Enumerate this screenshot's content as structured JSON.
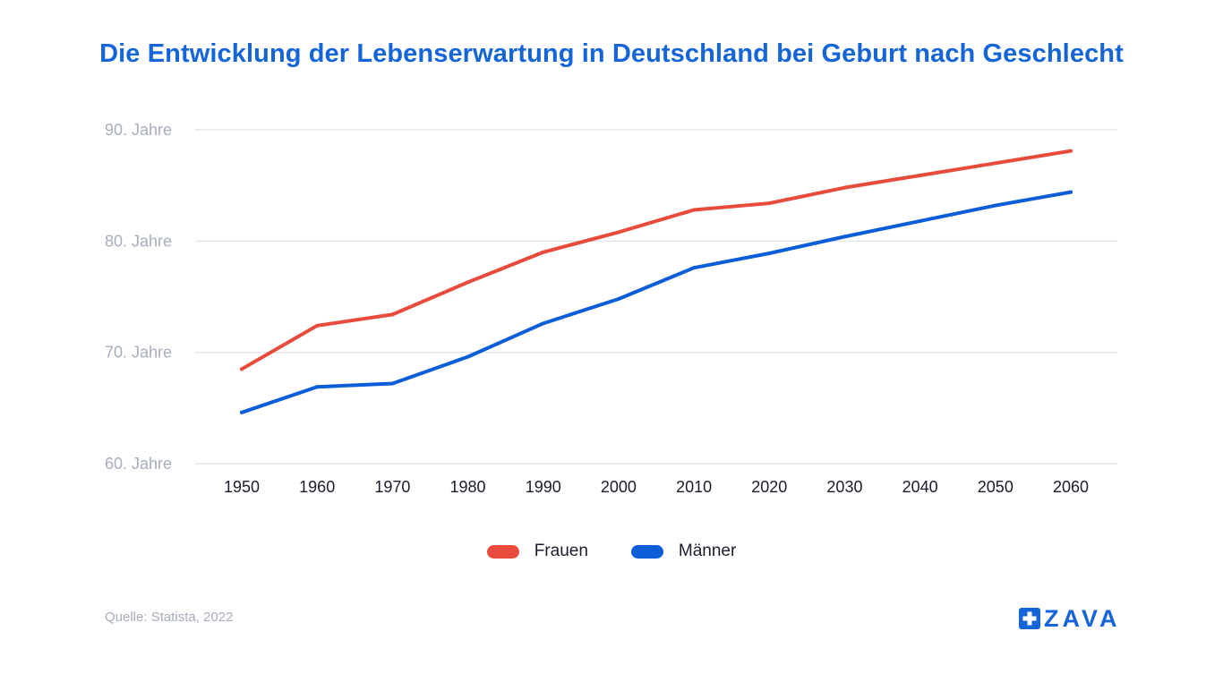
{
  "title": "Die Entwicklung der Lebenserwartung in Deutschland bei Geburt nach Geschlecht",
  "source": "Quelle: Statista, 2022",
  "logo": {
    "text": "ZAVA",
    "color": "#1565d8"
  },
  "chart_data": {
    "type": "line",
    "title": "Die Entwicklung der Lebenserwartung in Deutschland bei Geburt nach Geschlecht",
    "xlabel": "",
    "ylabel": "",
    "categories": [
      "1950",
      "1960",
      "1970",
      "1980",
      "1990",
      "2000",
      "2010",
      "2020",
      "2030",
      "2040",
      "2050",
      "2060"
    ],
    "y_ticks": [
      {
        "value": 60,
        "label": "60. Jahre"
      },
      {
        "value": 70,
        "label": "70. Jahre"
      },
      {
        "value": 80,
        "label": "80. Jahre"
      },
      {
        "value": 90,
        "label": "90. Jahre"
      }
    ],
    "ylim": [
      60,
      90
    ],
    "grid": true,
    "legend_position": "bottom-center",
    "series": [
      {
        "name": "Frauen",
        "color": "#e84b3c",
        "values": [
          68.5,
          72.4,
          73.4,
          76.3,
          79.0,
          80.8,
          82.8,
          83.4,
          84.8,
          85.9,
          87.0,
          88.1
        ]
      },
      {
        "name": "Männer",
        "color": "#0b5ed7",
        "values": [
          64.6,
          66.9,
          67.2,
          69.6,
          72.6,
          74.8,
          77.6,
          78.9,
          80.4,
          81.8,
          83.2,
          84.4
        ]
      }
    ]
  }
}
